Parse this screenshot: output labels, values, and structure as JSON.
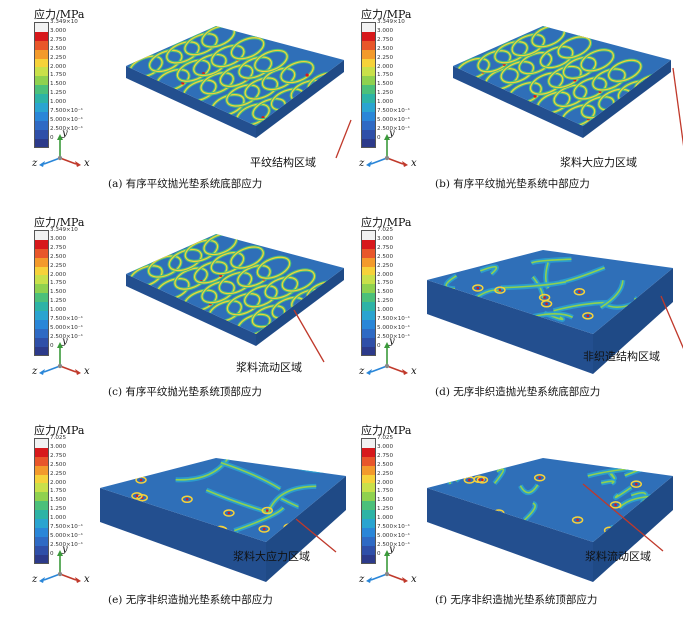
{
  "legend_title": "应力/MPa",
  "legends": {
    "ordered": [
      "3.349×10",
      "3.000",
      "2.750",
      "2.500",
      "2.250",
      "2.000",
      "1.750",
      "1.500",
      "1.250",
      "1.000",
      "7.500×10⁻¹",
      "5.000×10⁻¹",
      "2.500×10⁻¹",
      "0"
    ],
    "random": [
      "7.025",
      "3.000",
      "2.750",
      "2.500",
      "2.250",
      "2.000",
      "1.750",
      "1.500",
      "1.250",
      "1.000",
      "7.500×10⁻¹",
      "5.000×10⁻¹",
      "2.500×10⁻¹",
      "0"
    ]
  },
  "legend_colors": [
    "#f2f2f2",
    "#d7191c",
    "#e8562a",
    "#f39a2b",
    "#f6d23a",
    "#c9e04a",
    "#8fd14f",
    "#4cc07a",
    "#2db3a6",
    "#2aa4d0",
    "#2a86d8",
    "#2f6ac4",
    "#2f4fa8",
    "#2c3a8a"
  ],
  "panels": [
    {
      "caption": "(a) 有序平纹抛光垫系统底部应力",
      "callout": "平纹结构区域",
      "axes": [
        "y",
        "z",
        "x"
      ],
      "type": "ordered"
    },
    {
      "caption": "(b) 有序平纹抛光垫系统中部应力",
      "callout": "浆料大应力区域",
      "axes": [
        "y",
        "z",
        "x"
      ],
      "type": "ordered"
    },
    {
      "caption": "(c) 有序平纹抛光垫系统顶部应力",
      "callout": "浆料流动区域",
      "axes": [
        "y",
        "z",
        "x"
      ],
      "type": "ordered"
    },
    {
      "caption": "(d) 无序非织造抛光垫系统底部应力",
      "callout": "非织造结构区域",
      "axes": [
        "y",
        "z",
        "x"
      ],
      "type": "random"
    },
    {
      "caption": "(e) 无序非织造抛光垫系统中部应力",
      "callout": "浆料大应力区域",
      "axes": [
        "y",
        "z",
        "x"
      ],
      "type": "random"
    },
    {
      "caption": "(f) 无序非织造抛光垫系统顶部应力",
      "callout": "浆料流动区域",
      "axes": [
        "y",
        "z",
        "x"
      ],
      "type": "random"
    }
  ],
  "colors": {
    "slab_base": "#2f6fb8",
    "slab_dark": "#234f8f",
    "slab_side": "#1f4a86",
    "pointer": "#c0392b"
  }
}
